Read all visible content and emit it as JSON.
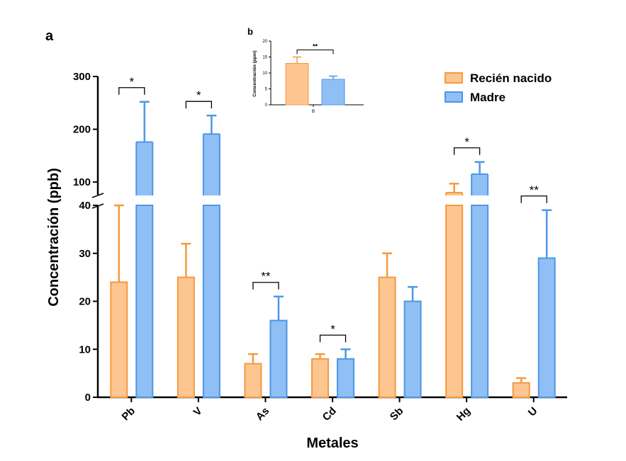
{
  "panel_a_label": "a",
  "panel_b_label": "b",
  "colors": {
    "recien_nacido_fill": "#FDC590",
    "recien_nacido_edge": "#F59A3F",
    "madre_fill": "#90BFF5",
    "madre_edge": "#4C97E6",
    "axis": "#000000"
  },
  "chart_data": [
    {
      "type": "bar",
      "panel": "a",
      "xlabel": "Metales",
      "ylabel": "Concentración (ppb)",
      "categories": [
        "Pb",
        "V",
        "As",
        "Cd",
        "Sb",
        "Hg",
        "U"
      ],
      "broken_y_axis": true,
      "lower_ylim": [
        0,
        40
      ],
      "upper_ylim": [
        76,
        300
      ],
      "lower_ticks": [
        0,
        10,
        20,
        30,
        40
      ],
      "upper_ticks": [
        100,
        200,
        300
      ],
      "legend_position": "top-right",
      "series": [
        {
          "name": "Recién nacido",
          "values": [
            24,
            25,
            7,
            8,
            25,
            80,
            3
          ],
          "error_upper": [
            40,
            32,
            9,
            9,
            30,
            97,
            4
          ]
        },
        {
          "name": "Madre",
          "values": [
            176,
            191,
            16,
            8,
            20,
            115,
            29
          ],
          "error_upper": [
            252,
            226,
            21,
            10,
            23,
            138,
            39
          ]
        }
      ],
      "significance": [
        {
          "category": "Pb",
          "label": "*"
        },
        {
          "category": "V",
          "label": "*"
        },
        {
          "category": "As",
          "label": "**"
        },
        {
          "category": "Cd",
          "label": "*"
        },
        {
          "category": "Hg",
          "label": "*"
        },
        {
          "category": "U",
          "label": "**"
        }
      ]
    },
    {
      "type": "bar",
      "panel": "b",
      "ylabel": "Concentración (ppm)",
      "categories": [
        "B"
      ],
      "ylim": [
        0,
        20
      ],
      "ticks": [
        0,
        5,
        10,
        15,
        20
      ],
      "series": [
        {
          "name": "Recién nacido",
          "values": [
            13
          ],
          "error_upper": [
            15
          ]
        },
        {
          "name": "Madre",
          "values": [
            8
          ],
          "error_upper": [
            9
          ]
        }
      ],
      "significance": [
        {
          "category": "B",
          "label": "**"
        }
      ]
    }
  ]
}
